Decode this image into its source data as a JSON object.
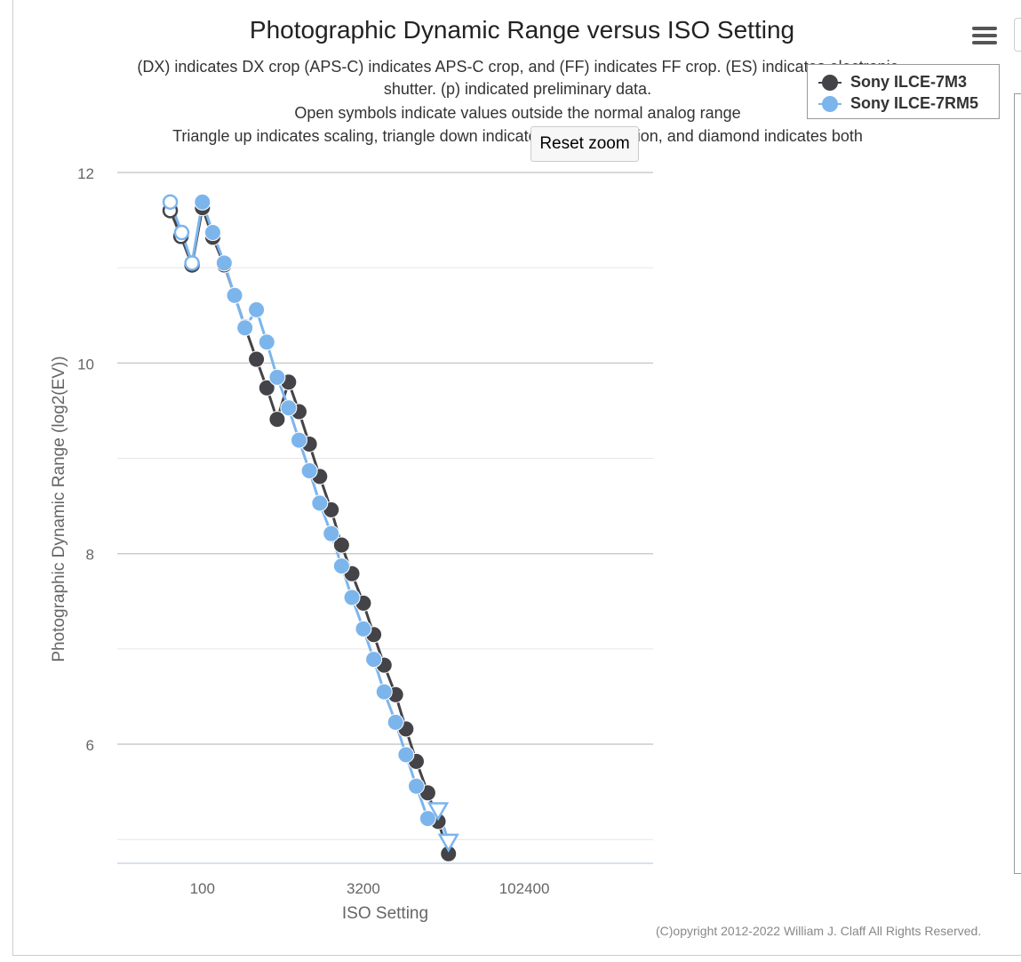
{
  "page": {
    "title": "Photographic Dynamic Range versus ISO Setting",
    "subtitle_lines": [
      "(DX) indicates DX crop (APS-C) indicates APS-C crop, and (FF) indicates FF crop. (ES) indicates electronic",
      "shutter. (p) indicated preliminary data.",
      "Open symbols indicate values outside the normal analog range",
      "Triangle up indicates scaling, triangle down indicates noise reduction, and diamond indicates both"
    ],
    "reset_zoom_label": "Reset zoom",
    "copyright": "(C)opyright 2012-2022 William J. Claff All Rights Reserved.",
    "menu_icon": "hamburger-menu-icon"
  },
  "colors": {
    "series_1": "#434348",
    "series_2": "#7cb5ec",
    "grid": "#d8d8d8",
    "axis": "#ccd6eb"
  },
  "chart_data": {
    "type": "line",
    "title": "Photographic Dynamic Range versus ISO Setting",
    "xlabel": "ISO Setting",
    "ylabel": "Photographic Dynamic Range (log2(EV))",
    "x_scale": "log2",
    "xlim": [
      16,
      1638400
    ],
    "ylim": [
      4.75,
      12
    ],
    "x_ticks": [
      100,
      3200,
      102400
    ],
    "x_tick_labels": [
      "100",
      "3200",
      "102400"
    ],
    "y_ticks": [
      6,
      8,
      10,
      12
    ],
    "y_tick_labels": [
      "6",
      "8",
      "10",
      "12"
    ],
    "legend": "top-right",
    "series": [
      {
        "name": "Sony ILCE-7M3",
        "points": [
          {
            "x": 50,
            "y": 11.6,
            "m": "open"
          },
          {
            "x": 63,
            "y": 11.33,
            "m": "open"
          },
          {
            "x": 80,
            "y": 11.03,
            "m": "open"
          },
          {
            "x": 100,
            "y": 11.63
          },
          {
            "x": 125,
            "y": 11.32
          },
          {
            "x": 160,
            "y": 11.03
          },
          {
            "x": 200,
            "y": 10.71
          },
          {
            "x": 250,
            "y": 10.38
          },
          {
            "x": 320,
            "y": 10.04
          },
          {
            "x": 400,
            "y": 9.74
          },
          {
            "x": 500,
            "y": 9.41
          },
          {
            "x": 640,
            "y": 9.8
          },
          {
            "x": 800,
            "y": 9.49
          },
          {
            "x": 1000,
            "y": 9.15
          },
          {
            "x": 1250,
            "y": 8.81
          },
          {
            "x": 1600,
            "y": 8.46
          },
          {
            "x": 2000,
            "y": 8.09
          },
          {
            "x": 2500,
            "y": 7.79
          },
          {
            "x": 3200,
            "y": 7.48
          },
          {
            "x": 4000,
            "y": 7.15
          },
          {
            "x": 5000,
            "y": 6.83
          },
          {
            "x": 6400,
            "y": 6.52
          },
          {
            "x": 8000,
            "y": 6.16
          },
          {
            "x": 10000,
            "y": 5.82
          },
          {
            "x": 12800,
            "y": 5.49
          },
          {
            "x": 16000,
            "y": 5.19
          },
          {
            "x": 20000,
            "y": 4.85
          }
        ]
      },
      {
        "name": "Sony ILCE-7RM5",
        "points": [
          {
            "x": 50,
            "y": 11.69,
            "m": "open"
          },
          {
            "x": 64,
            "y": 11.37,
            "m": "open"
          },
          {
            "x": 80,
            "y": 11.05,
            "m": "open"
          },
          {
            "x": 100,
            "y": 11.69
          },
          {
            "x": 125,
            "y": 11.37
          },
          {
            "x": 160,
            "y": 11.05
          },
          {
            "x": 200,
            "y": 10.71
          },
          {
            "x": 250,
            "y": 10.37
          },
          {
            "x": 320,
            "y": 10.56
          },
          {
            "x": 400,
            "y": 10.22
          },
          {
            "x": 500,
            "y": 9.85
          },
          {
            "x": 640,
            "y": 9.53
          },
          {
            "x": 800,
            "y": 9.19
          },
          {
            "x": 1000,
            "y": 8.87
          },
          {
            "x": 1250,
            "y": 8.53
          },
          {
            "x": 1600,
            "y": 8.21
          },
          {
            "x": 2000,
            "y": 7.87
          },
          {
            "x": 2500,
            "y": 7.54
          },
          {
            "x": 3200,
            "y": 7.21
          },
          {
            "x": 4000,
            "y": 6.89
          },
          {
            "x": 5000,
            "y": 6.55
          },
          {
            "x": 6400,
            "y": 6.23
          },
          {
            "x": 8000,
            "y": 5.89
          },
          {
            "x": 10000,
            "y": 5.56
          },
          {
            "x": 12800,
            "y": 5.22
          },
          {
            "x": 16000,
            "y": 5.31,
            "m": "tri-down"
          },
          {
            "x": 20000,
            "y": 4.98,
            "m": "tri-down"
          }
        ]
      }
    ]
  }
}
